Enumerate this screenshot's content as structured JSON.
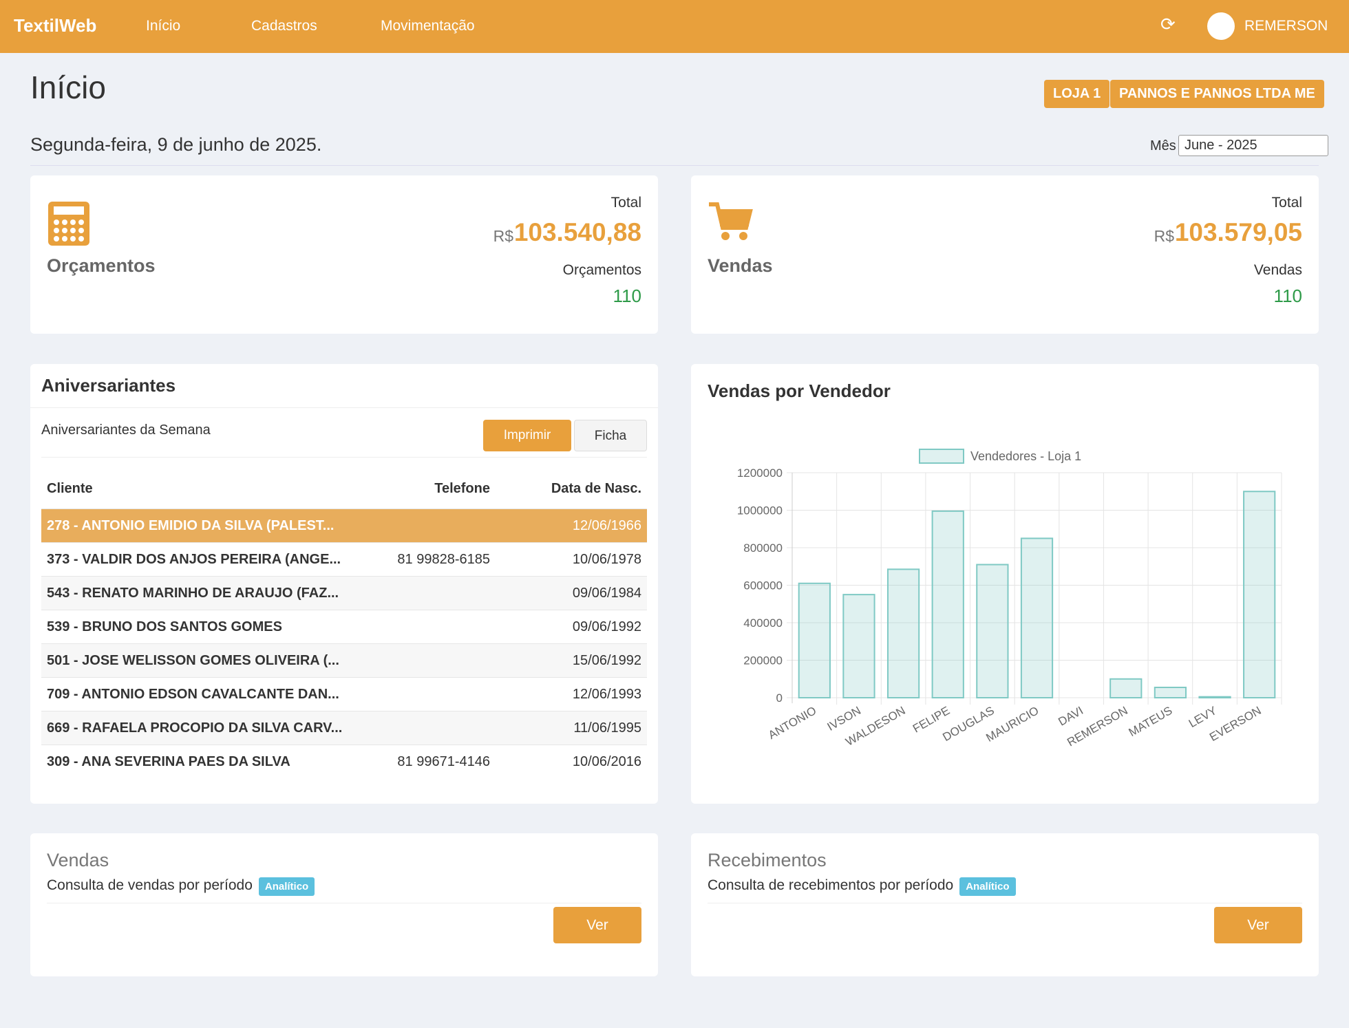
{
  "navbar": {
    "brand": "TextilWeb",
    "items": [
      "Início",
      "Cadastros",
      "Movimentação"
    ],
    "user": "REMERSON"
  },
  "header": {
    "title": "Início",
    "badges": [
      "LOJA 1",
      "PANNOS E PANNOS LTDA ME"
    ],
    "date": "Segunda-feira, 9 de junho de 2025.",
    "month_label": "Mês",
    "month": "June - 2025"
  },
  "summary": [
    {
      "title": "Orçamentos",
      "total_label": "Total",
      "currency": "R$",
      "total": "103.540,88",
      "count_label": "Orçamentos",
      "count": "110"
    },
    {
      "title": "Vendas",
      "total_label": "Total",
      "currency": "R$",
      "total": "103.579,05",
      "count_label": "Vendas",
      "count": "110"
    }
  ],
  "birthdays": {
    "title": "Aniversariantes",
    "subtitle": "Aniversariantes da Semana",
    "buttons": [
      "Imprimir",
      "Ficha"
    ],
    "columns": [
      "Cliente",
      "Telefone",
      "Data de Nasc."
    ],
    "rows": [
      [
        "278 - ANTONIO EMIDIO DA SILVA (PALEST...",
        null,
        "12/06/1966"
      ],
      [
        "373 - VALDIR DOS ANJOS PEREIRA (ANGE...",
        "81 99828-6185",
        "10/06/1978"
      ],
      [
        "543 - RENATO MARINHO DE ARAUJO (FAZ...",
        null,
        "09/06/1984"
      ],
      [
        "539 - BRUNO DOS SANTOS GOMES",
        null,
        "09/06/1992"
      ],
      [
        "501 - JOSE WELISSON GOMES OLIVEIRA (...",
        null,
        "15/06/1992"
      ],
      [
        "709 - ANTONIO EDSON CAVALCANTE DAN...",
        null,
        "12/06/1993"
      ],
      [
        "669 - RAFAELA PROCOPIO DA SILVA CARV...",
        null,
        "11/06/1995"
      ],
      [
        "309 - ANA SEVERINA PAES DA SILVA",
        "81 99671-4146",
        "10/06/2016"
      ]
    ]
  },
  "chart_data": {
    "type": "bar",
    "title": "Vendas por Vendedor",
    "categories": [
      "ANTONIO",
      "IVSON",
      "WALDESON",
      "FELIPE",
      "DOUGLAS",
      "MAURICIO",
      "DAVI",
      "REMERSON",
      "MATEUS",
      "LEVY",
      "EVERSON"
    ],
    "series": [
      {
        "name": "Vendedores - Loja 1",
        "color": "#7fc9c4",
        "values": [
          610000,
          550000,
          685000,
          995000,
          710000,
          850000,
          0,
          100000,
          55000,
          5000,
          1100000
        ]
      }
    ],
    "ylim": [
      0,
      1200000
    ],
    "yticks": [
      0,
      200000,
      400000,
      600000,
      800000,
      1000000,
      1200000
    ],
    "grid": true
  },
  "reports": [
    {
      "title": "Vendas",
      "description": "Consulta de vendas por período",
      "tag": "Analítico",
      "button": "Ver"
    },
    {
      "title": "Recebimentos",
      "description": "Consulta de recebimentos por período",
      "tag": "Analítico",
      "button": "Ver"
    }
  ]
}
